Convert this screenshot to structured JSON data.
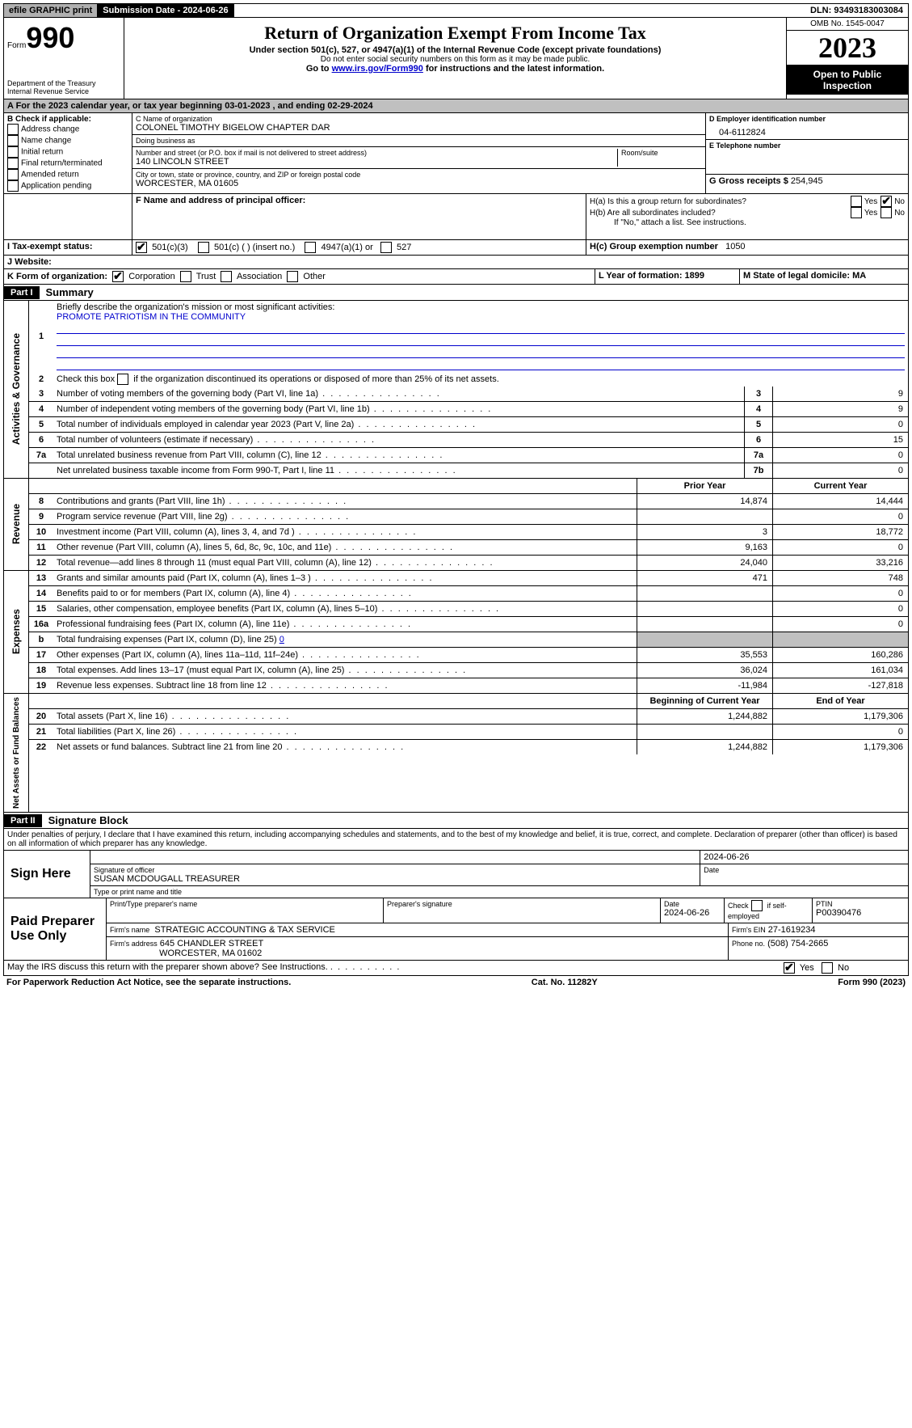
{
  "topbar": {
    "efile": "efile GRAPHIC print",
    "submission_label": "Submission Date - 2024-06-26",
    "dln": "DLN: 93493183003084"
  },
  "header": {
    "form_word": "Form",
    "form_no": "990",
    "dept": "Department of the Treasury Internal Revenue Service",
    "title": "Return of Organization Exempt From Income Tax",
    "sub1": "Under section 501(c), 527, or 4947(a)(1) of the Internal Revenue Code (except private foundations)",
    "sub2": "Do not enter social security numbers on this form as it may be made public.",
    "sub3_a": "Go to ",
    "sub3_link": "www.irs.gov/Form990",
    "sub3_b": " for instructions and the latest information.",
    "omb": "OMB No. 1545-0047",
    "year": "2023",
    "inspect": "Open to Public Inspection"
  },
  "line_a": "A For the 2023 calendar year, or tax year beginning 03-01-2023   , and ending 02-29-2024",
  "box_b": {
    "label": "B Check if applicable:",
    "items": [
      "Address change",
      "Name change",
      "Initial return",
      "Final return/terminated",
      "Amended return",
      "Application pending"
    ]
  },
  "box_c": {
    "name_lbl": "C Name of organization",
    "name": "COLONEL TIMOTHY BIGELOW CHAPTER DAR",
    "dba_lbl": "Doing business as",
    "addr_lbl": "Number and street (or P.O. box if mail is not delivered to street address)",
    "room_lbl": "Room/suite",
    "addr": "140 LINCOLN STREET",
    "city_lbl": "City or town, state or province, country, and ZIP or foreign postal code",
    "city": "WORCESTER, MA  01605"
  },
  "box_d": {
    "lbl": "D Employer identification number",
    "val": "04-6112824"
  },
  "box_e": {
    "lbl": "E Telephone number",
    "val": ""
  },
  "box_g": {
    "lbl": "G Gross receipts $",
    "val": "254,945"
  },
  "box_f": "F  Name and address of principal officer:",
  "box_h": {
    "a": "H(a)  Is this a group return for subordinates?",
    "b": "H(b)  Are all subordinates included?",
    "b_note": "If \"No,\" attach a list. See instructions.",
    "c_lbl": "H(c)  Group exemption number",
    "c_val": "1050",
    "yes": "Yes",
    "no": "No"
  },
  "box_i": {
    "lbl": "I   Tax-exempt status:",
    "o1": "501(c)(3)",
    "o2": "501(c) (  ) (insert no.)",
    "o3": "4947(a)(1) or",
    "o4": "527"
  },
  "box_j": "J   Website:",
  "box_k": {
    "lbl": "K Form of organization:",
    "o": [
      "Corporation",
      "Trust",
      "Association",
      "Other"
    ]
  },
  "box_l": "L Year of formation: 1899",
  "box_m": "M State of legal domicile: MA",
  "part1": {
    "hdr": "Part I",
    "title": "Summary",
    "l1_lbl": "Briefly describe the organization's mission or most significant activities:",
    "l1_val": "PROMOTE PATRIOTISM IN THE COMMUNITY",
    "l2": "Check this box       if the organization discontinued its operations or disposed of more than 25% of its net assets.",
    "gov_lines": [
      {
        "n": "3",
        "t": "Number of voting members of the governing body (Part VI, line 1a)",
        "b": "3",
        "v": "9"
      },
      {
        "n": "4",
        "t": "Number of independent voting members of the governing body (Part VI, line 1b)",
        "b": "4",
        "v": "9"
      },
      {
        "n": "5",
        "t": "Total number of individuals employed in calendar year 2023 (Part V, line 2a)",
        "b": "5",
        "v": "0"
      },
      {
        "n": "6",
        "t": "Total number of volunteers (estimate if necessary)",
        "b": "6",
        "v": "15"
      },
      {
        "n": "7a",
        "t": "Total unrelated business revenue from Part VIII, column (C), line 12",
        "b": "7a",
        "v": "0"
      },
      {
        "n": "",
        "t": "Net unrelated business taxable income from Form 990-T, Part I, line 11",
        "b": "7b",
        "v": "0"
      }
    ],
    "col_prior": "Prior Year",
    "col_curr": "Current Year",
    "rev_lines": [
      {
        "n": "8",
        "t": "Contributions and grants (Part VIII, line 1h)",
        "p": "14,874",
        "c": "14,444"
      },
      {
        "n": "9",
        "t": "Program service revenue (Part VIII, line 2g)",
        "p": "",
        "c": "0"
      },
      {
        "n": "10",
        "t": "Investment income (Part VIII, column (A), lines 3, 4, and 7d )",
        "p": "3",
        "c": "18,772"
      },
      {
        "n": "11",
        "t": "Other revenue (Part VIII, column (A), lines 5, 6d, 8c, 9c, 10c, and 11e)",
        "p": "9,163",
        "c": "0"
      },
      {
        "n": "12",
        "t": "Total revenue—add lines 8 through 11 (must equal Part VIII, column (A), line 12)",
        "p": "24,040",
        "c": "33,216"
      }
    ],
    "exp_lines": [
      {
        "n": "13",
        "t": "Grants and similar amounts paid (Part IX, column (A), lines 1–3 )",
        "p": "471",
        "c": "748"
      },
      {
        "n": "14",
        "t": "Benefits paid to or for members (Part IX, column (A), line 4)",
        "p": "",
        "c": "0"
      },
      {
        "n": "15",
        "t": "Salaries, other compensation, employee benefits (Part IX, column (A), lines 5–10)",
        "p": "",
        "c": "0"
      },
      {
        "n": "16a",
        "t": "Professional fundraising fees (Part IX, column (A), line 11e)",
        "p": "",
        "c": "0"
      },
      {
        "n": "b",
        "t": "Total fundraising expenses (Part IX, column (D), line 25) ",
        "shade": true,
        "p": "",
        "c": "",
        "val_inline": "0"
      },
      {
        "n": "17",
        "t": "Other expenses (Part IX, column (A), lines 11a–11d, 11f–24e)",
        "p": "35,553",
        "c": "160,286"
      },
      {
        "n": "18",
        "t": "Total expenses. Add lines 13–17 (must equal Part IX, column (A), line 25)",
        "p": "36,024",
        "c": "161,034"
      },
      {
        "n": "19",
        "t": "Revenue less expenses. Subtract line 18 from line 12",
        "p": "-11,984",
        "c": "-127,818"
      }
    ],
    "col_begin": "Beginning of Current Year",
    "col_end": "End of Year",
    "net_lines": [
      {
        "n": "20",
        "t": "Total assets (Part X, line 16)",
        "p": "1,244,882",
        "c": "1,179,306"
      },
      {
        "n": "21",
        "t": "Total liabilities (Part X, line 26)",
        "p": "",
        "c": "0"
      },
      {
        "n": "22",
        "t": "Net assets or fund balances. Subtract line 21 from line 20",
        "p": "1,244,882",
        "c": "1,179,306"
      }
    ],
    "sect_gov": "Activities & Governance",
    "sect_rev": "Revenue",
    "sect_exp": "Expenses",
    "sect_net": "Net Assets or Fund Balances"
  },
  "part2": {
    "hdr": "Part II",
    "title": "Signature Block",
    "decl": "Under penalties of perjury, I declare that I have examined this return, including accompanying schedules and statements, and to the best of my knowledge and belief, it is true, correct, and complete. Declaration of preparer (other than officer) is based on all information of which preparer has any knowledge."
  },
  "sign": {
    "here": "Sign Here",
    "sig_lbl": "Signature of officer",
    "date_lbl": "Date",
    "date": "2024-06-26",
    "name_lbl": "Type or print name and title",
    "name": "SUSAN MCDOUGALL TREASURER"
  },
  "prep": {
    "label": "Paid Preparer Use Only",
    "h1": "Print/Type preparer's name",
    "h2": "Preparer's signature",
    "h3": "Date",
    "h3v": "2024-06-26",
    "h4a": "Check",
    "h4b": "if self-employed",
    "h5": "PTIN",
    "h5v": "P00390476",
    "firm_name_lbl": "Firm's name",
    "firm_name": "STRATEGIC ACCOUNTING & TAX SERVICE",
    "firm_ein_lbl": "Firm's EIN",
    "firm_ein": "27-1619234",
    "firm_addr_lbl": "Firm's address",
    "firm_addr1": "645 CHANDLER STREET",
    "firm_addr2": "WORCESTER, MA  01602",
    "phone_lbl": "Phone no.",
    "phone": "(508) 754-2665"
  },
  "discuss": "May the IRS discuss this return with the preparer shown above? See Instructions.",
  "footer": {
    "left": "For Paperwork Reduction Act Notice, see the separate instructions.",
    "mid": "Cat. No. 11282Y",
    "right_a": "Form ",
    "right_b": "990",
    "right_c": " (2023)"
  }
}
